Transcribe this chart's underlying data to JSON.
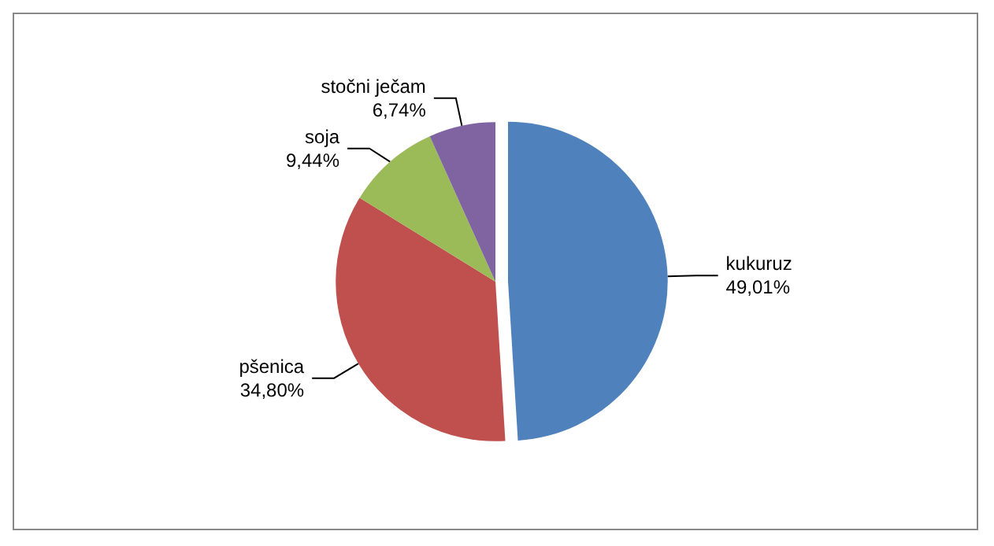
{
  "chart_data": {
    "type": "pie",
    "categories": [
      "kukuruz",
      "pšenica",
      "soja",
      "stočni ječam"
    ],
    "values": [
      49.01,
      34.8,
      9.44,
      6.74
    ],
    "value_labels": [
      "49,01%",
      "34,80%",
      "9,44%",
      "6,74%"
    ],
    "colors": [
      "#4f81bd",
      "#c0504d",
      "#9bbb59",
      "#8064a2"
    ],
    "legend": false
  }
}
